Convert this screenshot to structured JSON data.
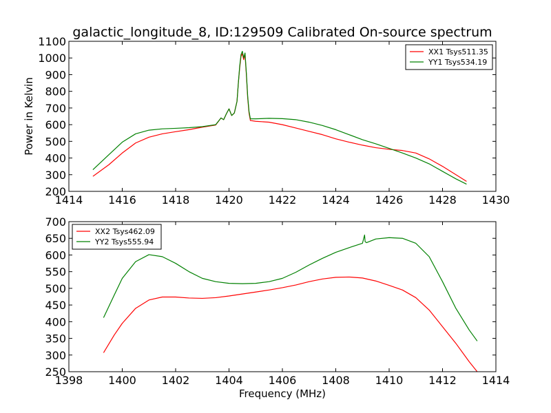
{
  "chart_data": [
    {
      "type": "line",
      "title": "galactic_longitude_8, ID:129509 Calibrated On-source spectrum",
      "xlabel": "",
      "ylabel": "Power in Kelvin",
      "xlim": [
        1414,
        1430
      ],
      "ylim": [
        200,
        1100
      ],
      "xticks": [
        "1414",
        "1416",
        "1418",
        "1420",
        "1422",
        "1424",
        "1426",
        "1428",
        "1430"
      ],
      "yticks": [
        "200",
        "300",
        "400",
        "500",
        "600",
        "700",
        "800",
        "900",
        "1000",
        "1100"
      ],
      "grid": false,
      "legend_position": "top-right",
      "series": [
        {
          "name": "XX1 Tsys511.35",
          "color": "#ff0000",
          "x": [
            1414.9,
            1415.5,
            1416.0,
            1416.5,
            1417.0,
            1417.5,
            1418.0,
            1418.5,
            1419.0,
            1419.5,
            1419.7,
            1419.8,
            1419.9,
            1420.0,
            1420.1,
            1420.2,
            1420.3,
            1420.35,
            1420.4,
            1420.45,
            1420.5,
            1420.55,
            1420.6,
            1420.65,
            1420.7,
            1420.75,
            1420.8,
            1421.0,
            1421.5,
            1422.0,
            1422.5,
            1423.0,
            1423.5,
            1424.0,
            1424.5,
            1425.0,
            1425.5,
            1426.0,
            1426.5,
            1427.0,
            1427.5,
            1428.0,
            1428.5,
            1428.9
          ],
          "values": [
            290,
            360,
            430,
            490,
            525,
            545,
            558,
            570,
            585,
            598,
            640,
            630,
            665,
            695,
            655,
            670,
            740,
            850,
            940,
            1010,
            1025,
            990,
            1020,
            900,
            760,
            670,
            625,
            620,
            615,
            600,
            580,
            560,
            540,
            515,
            495,
            477,
            462,
            452,
            445,
            430,
            395,
            350,
            300,
            260
          ]
        },
        {
          "name": "YY1 Tsys534.19",
          "color": "#008000",
          "x": [
            1414.9,
            1415.5,
            1416.0,
            1416.5,
            1417.0,
            1417.5,
            1418.0,
            1418.5,
            1419.0,
            1419.5,
            1419.7,
            1419.8,
            1419.9,
            1420.0,
            1420.1,
            1420.2,
            1420.3,
            1420.35,
            1420.4,
            1420.45,
            1420.5,
            1420.55,
            1420.6,
            1420.65,
            1420.7,
            1420.75,
            1420.8,
            1421.0,
            1421.5,
            1422.0,
            1422.5,
            1423.0,
            1423.5,
            1424.0,
            1424.5,
            1425.0,
            1425.5,
            1426.0,
            1426.5,
            1427.0,
            1427.5,
            1428.0,
            1428.5,
            1428.9
          ],
          "values": [
            330,
            420,
            495,
            545,
            567,
            575,
            578,
            582,
            588,
            600,
            640,
            630,
            665,
            695,
            655,
            670,
            740,
            850,
            950,
            1020,
            1040,
            1000,
            1030,
            910,
            770,
            680,
            635,
            635,
            638,
            636,
            630,
            615,
            595,
            570,
            540,
            510,
            485,
            458,
            430,
            400,
            365,
            320,
            275,
            243
          ]
        }
      ]
    },
    {
      "type": "line",
      "title": "",
      "xlabel": "Frequency (MHz)",
      "ylabel": "",
      "xlim": [
        1398,
        1414
      ],
      "ylim": [
        250,
        700
      ],
      "xticks": [
        "1398",
        "1400",
        "1402",
        "1404",
        "1406",
        "1408",
        "1410",
        "1412",
        "1414"
      ],
      "yticks": [
        "250",
        "300",
        "350",
        "400",
        "450",
        "500",
        "550",
        "600",
        "650",
        "700"
      ],
      "grid": false,
      "legend_position": "top-left",
      "series": [
        {
          "name": "XX2 Tsys462.09",
          "color": "#ff0000",
          "x": [
            1399.3,
            1399.7,
            1400.0,
            1400.5,
            1401.0,
            1401.5,
            1402.0,
            1402.5,
            1403.0,
            1403.5,
            1404.0,
            1404.5,
            1405.0,
            1405.5,
            1406.0,
            1406.5,
            1407.0,
            1407.5,
            1408.0,
            1408.5,
            1409.0,
            1409.5,
            1410.0,
            1410.5,
            1411.0,
            1411.5,
            1412.0,
            1412.5,
            1413.0,
            1413.3
          ],
          "values": [
            307,
            360,
            395,
            440,
            465,
            474,
            474,
            471,
            470,
            472,
            477,
            483,
            489,
            495,
            502,
            510,
            520,
            528,
            533,
            534,
            531,
            522,
            509,
            495,
            472,
            435,
            385,
            335,
            280,
            250
          ]
        },
        {
          "name": "YY2 Tsys555.94",
          "color": "#008000",
          "x": [
            1399.3,
            1399.7,
            1400.0,
            1400.5,
            1401.0,
            1401.5,
            1402.0,
            1402.5,
            1403.0,
            1403.5,
            1404.0,
            1404.5,
            1405.0,
            1405.5,
            1406.0,
            1406.5,
            1407.0,
            1407.5,
            1408.0,
            1408.5,
            1409.0,
            1409.08,
            1409.1,
            1409.15,
            1409.5,
            1410.0,
            1410.5,
            1411.0,
            1411.5,
            1412.0,
            1412.5,
            1413.0,
            1413.3
          ],
          "values": [
            412,
            480,
            530,
            580,
            601,
            595,
            575,
            550,
            530,
            520,
            515,
            514,
            515,
            520,
            530,
            548,
            570,
            590,
            608,
            622,
            635,
            660,
            640,
            637,
            648,
            652,
            650,
            635,
            595,
            520,
            440,
            375,
            342
          ]
        }
      ]
    }
  ]
}
